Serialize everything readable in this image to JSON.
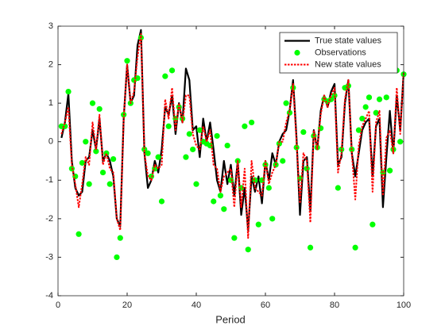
{
  "chart_data": {
    "type": "line",
    "x_label": "Period",
    "x": [
      1,
      2,
      3,
      4,
      5,
      6,
      7,
      8,
      9,
      10,
      11,
      12,
      13,
      14,
      15,
      16,
      17,
      18,
      19,
      20,
      21,
      22,
      23,
      24,
      25,
      26,
      27,
      28,
      29,
      30,
      31,
      32,
      33,
      34,
      35,
      36,
      37,
      38,
      39,
      40,
      41,
      42,
      43,
      44,
      45,
      46,
      47,
      48,
      49,
      50,
      51,
      52,
      53,
      54,
      55,
      56,
      57,
      58,
      59,
      60,
      61,
      62,
      63,
      64,
      65,
      66,
      67,
      68,
      69,
      70,
      71,
      72,
      73,
      74,
      75,
      76,
      77,
      78,
      79,
      80,
      81,
      82,
      83,
      84,
      85,
      86,
      87,
      88,
      89,
      90,
      91,
      92,
      93,
      94,
      95,
      96,
      97,
      98,
      99,
      100
    ],
    "xlim": [
      0,
      100
    ],
    "xticks": [
      0,
      20,
      40,
      60,
      80,
      100
    ],
    "ylim": [
      -4,
      3
    ],
    "yticks": [
      -4,
      -3,
      -2,
      -1,
      0,
      1,
      2,
      3
    ],
    "legend_position": "northeast",
    "series": [
      {
        "name": "True state values",
        "color": "#000000",
        "line_style": "solid",
        "marker": "none",
        "values": [
          0.1,
          0.5,
          1.25,
          -0.5,
          -1.2,
          -1.4,
          -1.3,
          -0.5,
          -0.4,
          0.3,
          -0.2,
          0.6,
          -0.5,
          -0.3,
          -0.5,
          -0.9,
          -2.0,
          -2.2,
          0.6,
          2.0,
          1.0,
          1.2,
          2.5,
          2.9,
          -0.3,
          -1.2,
          -1.0,
          -0.5,
          -0.8,
          -0.2,
          0.9,
          0.7,
          1.2,
          0.2,
          1.0,
          0.5,
          1.9,
          1.6,
          0.3,
          0.4,
          -0.4,
          0.6,
          0,
          0.5,
          -0.2,
          -1.0,
          -1.3,
          -0.5,
          -1.1,
          -0.6,
          -1.4,
          -0.5,
          -1.9,
          -1.2,
          -2.3,
          -0.9,
          -1.3,
          -0.9,
          -1.6,
          -0.5,
          -1.0,
          -0.3,
          -0.6,
          0,
          0.2,
          0.3,
          0.8,
          1.6,
          0.1,
          -1.9,
          -0.5,
          -0.4,
          -1.8,
          0.3,
          -0.2,
          0.8,
          1.2,
          0.9,
          1.3,
          1.5,
          -0.6,
          -0.4,
          1.0,
          1.6,
          -0.3,
          -0.9,
          -0.3,
          0.3,
          0.5,
          0.6,
          -0.9,
          0.4,
          0.6,
          -1.7,
          -0.4,
          0.8,
          -0.3,
          1.2,
          0.3,
          1.8
        ]
      },
      {
        "name": "Observations",
        "color": "#00ff00",
        "line_style": "none",
        "marker": "o",
        "values": [
          0.4,
          0.4,
          1.3,
          -0.7,
          -0.9,
          -2.4,
          -0.55,
          0,
          -1.1,
          1.0,
          -0.25,
          0.85,
          -0.8,
          -0.3,
          -1.1,
          -0.45,
          -3.0,
          -2.5,
          0.7,
          2.1,
          1.0,
          1.6,
          1.65,
          2.7,
          -0.2,
          -0.3,
          -0.9,
          -0.7,
          -0.4,
          -1.55,
          1.7,
          0.4,
          1.85,
          0.6,
          0.9,
          0.6,
          -0.4,
          0.2,
          -0.2,
          -1.1,
          0.3,
          0,
          -0.05,
          -0.1,
          -1.55,
          0.15,
          -1.4,
          -1.75,
          -0.1,
          -1.0,
          -2.5,
          -0.5,
          -1.2,
          0.4,
          -2.8,
          0.5,
          -1.0,
          -2.15,
          -1.0,
          -0.6,
          -1.2,
          -2.0,
          -0.6,
          -0.05,
          -0.5,
          1.0,
          0.75,
          1.4,
          -0.15,
          -0.95,
          0.25,
          -0.7,
          -2.75,
          0.15,
          -0.15,
          0.35,
          1.1,
          1.05,
          1.1,
          1.2,
          -1.2,
          -0.2,
          1.4,
          1.45,
          -0.2,
          -2.75,
          0.3,
          0.6,
          0.9,
          1.15,
          -2.15,
          0.75,
          1.1,
          -0.8,
          1.15,
          -0.75,
          -0.2,
          1.85,
          0,
          1.75
        ]
      },
      {
        "name": "New state values",
        "color": "#ff0000",
        "line_style": "dotted",
        "marker": "none",
        "values": [
          0.2,
          0.5,
          0.9,
          -0.6,
          -1.1,
          -1.7,
          -1.1,
          -0.4,
          -0.6,
          0.5,
          -0.2,
          0.7,
          -0.6,
          -0.3,
          -0.7,
          -0.8,
          -2.0,
          -2.3,
          0.6,
          2.0,
          1.0,
          1.3,
          2.2,
          2.8,
          -0.3,
          -0.9,
          -1.0,
          -0.6,
          -0.7,
          -0.6,
          1.1,
          0.6,
          1.4,
          0.3,
          1.0,
          0.5,
          1.2,
          1.2,
          0.2,
          -0.1,
          -0.2,
          0.4,
          0,
          0.3,
          -0.6,
          -0.7,
          -1.3,
          -0.9,
          -0.8,
          -0.7,
          -1.7,
          -0.5,
          -1.7,
          -0.7,
          -2.5,
          -0.5,
          -1.2,
          -1.3,
          -1.4,
          -0.5,
          -1.1,
          -0.8,
          -0.6,
          0,
          0,
          0.5,
          0.8,
          1.5,
          0,
          -1.6,
          -0.3,
          -0.5,
          -2.1,
          0.3,
          -0.2,
          0.7,
          1.2,
          0.9,
          1.2,
          1.4,
          -0.8,
          -0.3,
          1.1,
          1.6,
          -0.3,
          -1.5,
          -0.1,
          0.4,
          0.6,
          0.8,
          -1.3,
          0.5,
          0.8,
          -1.4,
          0.1,
          0.3,
          -0.3,
          1.4,
          0.2,
          1.8
        ]
      }
    ]
  }
}
